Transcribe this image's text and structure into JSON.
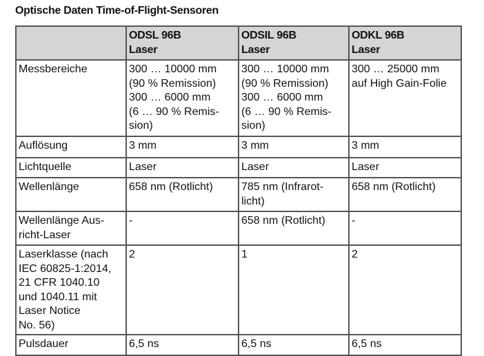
{
  "title": "Optische Daten Time-of-Flight-Sensoren",
  "header": [
    [],
    [
      "ODSL 96B",
      "Laser"
    ],
    [
      "ODSIL 96B",
      "Laser"
    ],
    [
      "ODKL 96B",
      "Laser"
    ]
  ],
  "rows": [
    {
      "label": [
        "Messbereiche"
      ],
      "cells": [
        [
          "300 … 10000 mm",
          "(90 % Remission)",
          "300 … 6000 mm",
          "(6 … 90 % Remis-",
          "sion)"
        ],
        [
          "300 … 10000 mm",
          "(90 % Remission)",
          "300 … 6000 mm",
          "(6 … 90 % Remis-",
          "sion)"
        ],
        [
          "300 … 25000 mm",
          "auf High Gain-Folie"
        ]
      ]
    },
    {
      "label": [
        "Auflösung"
      ],
      "cells": [
        [
          "3 mm"
        ],
        [
          "3 mm"
        ],
        [
          "3 mm"
        ]
      ]
    },
    {
      "label": [
        "Lichtquelle"
      ],
      "cells": [
        [
          "Laser"
        ],
        [
          "Laser"
        ],
        [
          "Laser"
        ]
      ]
    },
    {
      "label": [
        "Wellenlänge"
      ],
      "cells": [
        [
          "658 nm (Rotlicht)"
        ],
        [
          "785 nm (Infrarot-",
          "licht)"
        ],
        [
          "658 nm (Rotlicht)"
        ]
      ]
    },
    {
      "label": [
        "Wellenlänge Aus-",
        "richt-Laser"
      ],
      "cells": [
        [
          "-"
        ],
        [
          "658 nm (Rotlicht)"
        ],
        [
          "-"
        ]
      ]
    },
    {
      "label": [
        "Laserklasse (nach",
        "IEC 60825-1:2014,",
        "21 CFR 1040.10",
        "und 1040.11 mit",
        "Laser Notice",
        "No. 56)"
      ],
      "cells": [
        [
          "2"
        ],
        [
          "1"
        ],
        [
          "2"
        ]
      ]
    },
    {
      "label": [
        "Pulsdauer"
      ],
      "cells": [
        [
          "6,5 ns"
        ],
        [
          "6,5 ns"
        ],
        [
          "6,5 ns"
        ]
      ]
    }
  ]
}
